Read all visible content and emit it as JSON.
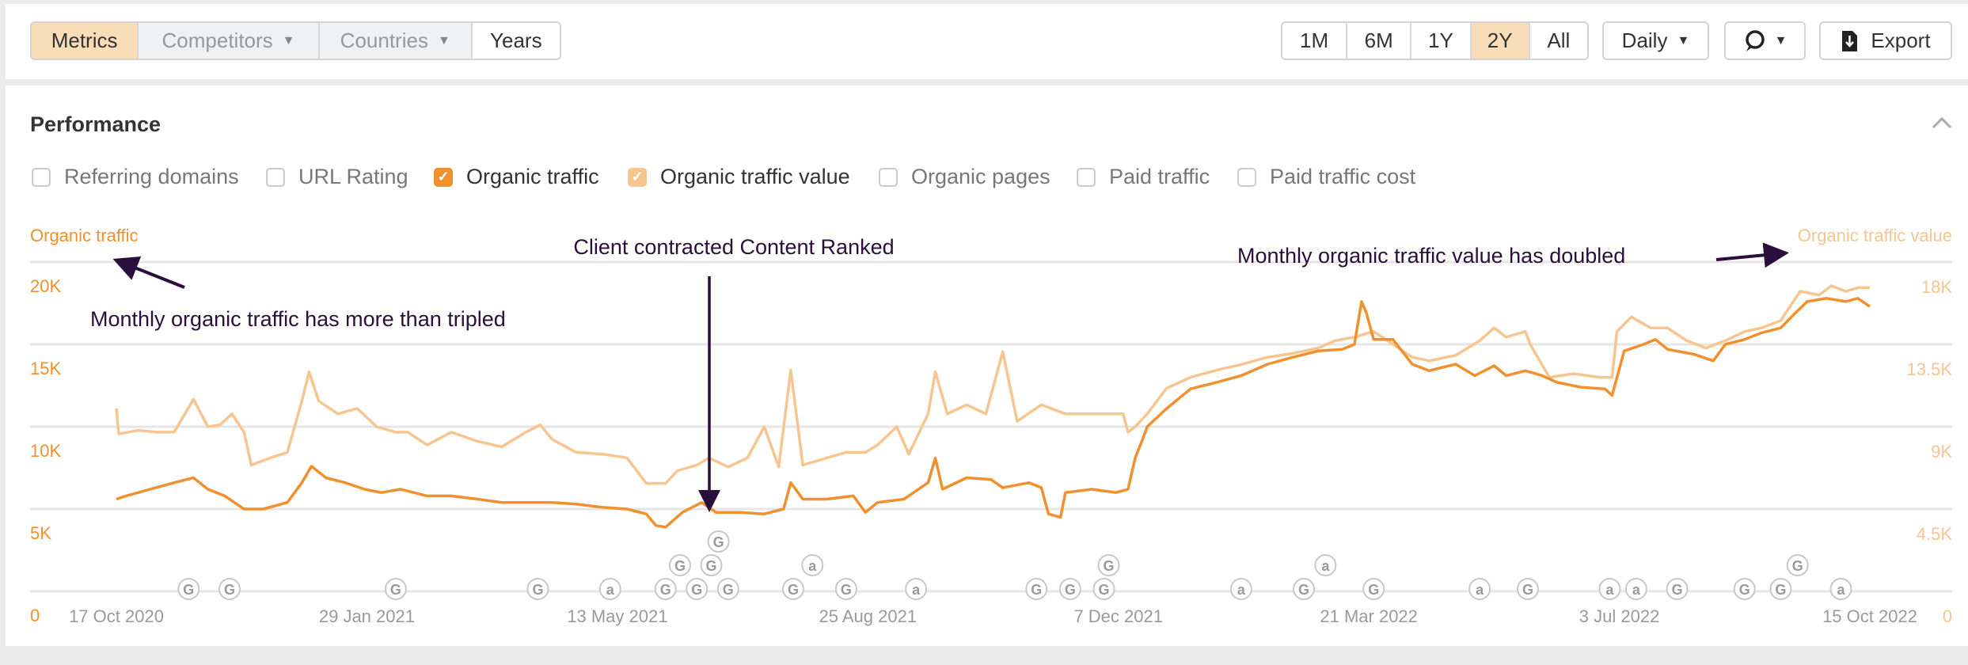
{
  "toolbar": {
    "left_tabs": [
      {
        "label": "Metrics",
        "active": true,
        "dropdown": false,
        "disabled": false
      },
      {
        "label": "Competitors",
        "active": false,
        "dropdown": true,
        "disabled": true
      },
      {
        "label": "Countries",
        "active": false,
        "dropdown": true,
        "disabled": true
      },
      {
        "label": "Years",
        "active": false,
        "dropdown": false,
        "disabled": false
      }
    ],
    "ranges": [
      {
        "label": "1M",
        "active": false
      },
      {
        "label": "6M",
        "active": false
      },
      {
        "label": "1Y",
        "active": false
      },
      {
        "label": "2Y",
        "active": true
      },
      {
        "label": "All",
        "active": false
      }
    ],
    "interval": "Daily",
    "comment_icon": "speech-bubble-icon",
    "export_label": "Export",
    "export_icon": "download-document-icon"
  },
  "section": {
    "title": "Performance",
    "collapse_icon": "chevron-up-icon",
    "metrics": [
      {
        "label": "Referring domains",
        "checked": false
      },
      {
        "label": "URL Rating",
        "checked": false
      },
      {
        "label": "Organic traffic",
        "checked": true,
        "color": "#f0902f"
      },
      {
        "label": "Organic traffic value",
        "checked": true,
        "color": "#f7c58f"
      },
      {
        "label": "Organic pages",
        "checked": false
      },
      {
        "label": "Paid traffic",
        "checked": false
      },
      {
        "label": "Paid traffic cost",
        "checked": false
      }
    ]
  },
  "chart_data": {
    "type": "line",
    "x_unit": "days since 17 Oct 2020",
    "xlim": [
      0,
      728
    ],
    "x_ticks": [
      {
        "day": 0,
        "label": "17 Oct 2020"
      },
      {
        "day": 104,
        "label": "29 Jan 2021"
      },
      {
        "day": 208,
        "label": "13 May 2021"
      },
      {
        "day": 312,
        "label": "25 Aug 2021"
      },
      {
        "day": 416,
        "label": "7 Dec 2021"
      },
      {
        "day": 520,
        "label": "21 Mar 2022"
      },
      {
        "day": 624,
        "label": "3 Jul 2022"
      },
      {
        "day": 728,
        "label": "15 Oct 2022"
      }
    ],
    "left_axis": {
      "label": "Organic traffic",
      "ylim": [
        0,
        20
      ],
      "ticks": [
        {
          "v": 0,
          "label": "0"
        },
        {
          "v": 5,
          "label": "5K"
        },
        {
          "v": 10,
          "label": "10K"
        },
        {
          "v": 15,
          "label": "15K"
        },
        {
          "v": 20,
          "label": "20K"
        }
      ],
      "color": "#f0902f"
    },
    "right_axis": {
      "label": "Organic traffic value",
      "ylim": [
        0,
        18
      ],
      "ticks": [
        {
          "v": 0,
          "label": "0"
        },
        {
          "v": 4.5,
          "label": "4.5K"
        },
        {
          "v": 9,
          "label": "9K"
        },
        {
          "v": 13.5,
          "label": "13.5K"
        },
        {
          "v": 18,
          "label": "18K"
        }
      ],
      "color": "#f7c58f"
    },
    "grid": true,
    "series": [
      {
        "name": "Organic traffic value",
        "axis": "right",
        "unit": "K",
        "color": "#f7c58f",
        "x": [
          0,
          1,
          9,
          17,
          24,
          32,
          38,
          43,
          48,
          53,
          56,
          64,
          71,
          77,
          80,
          84,
          92,
          100,
          108,
          116,
          121,
          129,
          139,
          150,
          160,
          170,
          176,
          181,
          191,
          202,
          212,
          220,
          228,
          233,
          241,
          246,
          254,
          262,
          269,
          275,
          280,
          285,
          295,
          303,
          311,
          316,
          324,
          329,
          337,
          340,
          345,
          353,
          361,
          368,
          374,
          384,
          394,
          405,
          418,
          420,
          423,
          428,
          436,
          446,
          457,
          467,
          478,
          488,
          499,
          506,
          514,
          522,
          530,
          538,
          545,
          556,
          566,
          572,
          577,
          585,
          587,
          595,
          605,
          616,
          621,
          623,
          629,
          637,
          644,
          652,
          660,
          668,
          676,
          683,
          691,
          699,
          707,
          712,
          718,
          723,
          728
        ],
        "values": [
          10.0,
          8.6,
          8.8,
          8.7,
          8.7,
          10.5,
          9.0,
          9.1,
          9.7,
          8.7,
          6.9,
          7.3,
          7.6,
          10.4,
          12.0,
          10.4,
          9.7,
          10.0,
          9.0,
          8.7,
          8.7,
          8.0,
          8.7,
          8.2,
          7.9,
          8.7,
          9.1,
          8.3,
          7.6,
          7.5,
          7.3,
          5.9,
          5.9,
          6.6,
          6.9,
          7.3,
          6.8,
          7.3,
          9.0,
          6.8,
          12.1,
          6.9,
          7.3,
          7.6,
          7.6,
          8.0,
          9.0,
          7.5,
          9.7,
          12.0,
          9.7,
          10.2,
          9.7,
          13.1,
          9.3,
          10.2,
          9.7,
          9.7,
          9.7,
          8.7,
          9.0,
          9.7,
          11.1,
          11.7,
          12.1,
          12.4,
          12.8,
          13.0,
          13.3,
          13.7,
          13.9,
          14.2,
          13.5,
          12.8,
          12.6,
          12.9,
          13.7,
          14.4,
          13.9,
          14.2,
          13.5,
          11.7,
          11.9,
          11.7,
          11.7,
          14.2,
          15.0,
          14.4,
          14.4,
          13.7,
          13.3,
          13.7,
          14.2,
          14.4,
          14.8,
          16.4,
          16.2,
          16.7,
          16.4,
          16.6,
          16.6
        ]
      },
      {
        "name": "Organic traffic",
        "axis": "left",
        "unit": "K",
        "color": "#f0902f",
        "x": [
          0,
          4,
          14,
          24,
          32,
          38,
          45,
          53,
          61,
          71,
          77,
          81,
          87,
          95,
          103,
          110,
          118,
          129,
          139,
          150,
          160,
          170,
          181,
          191,
          202,
          212,
          220,
          224,
          228,
          235,
          243,
          249,
          259,
          269,
          277,
          280,
          285,
          295,
          306,
          311,
          316,
          327,
          337,
          340,
          343,
          353,
          363,
          368,
          379,
          384,
          387,
          392,
          394,
          405,
          415,
          420,
          423,
          426,
          428,
          436,
          446,
          457,
          467,
          478,
          488,
          499,
          509,
          514,
          517,
          519,
          522,
          530,
          538,
          545,
          556,
          564,
          572,
          577,
          585,
          592,
          598,
          608,
          618,
          621,
          626,
          634,
          639,
          644,
          655,
          663,
          668,
          676,
          683,
          691,
          697,
          702,
          710,
          718,
          723,
          728
        ],
        "values": [
          5.6,
          5.8,
          6.2,
          6.6,
          6.9,
          6.2,
          5.8,
          5.0,
          5.0,
          5.4,
          6.6,
          7.6,
          6.9,
          6.6,
          6.2,
          6.0,
          6.2,
          5.8,
          5.8,
          5.6,
          5.4,
          5.4,
          5.4,
          5.3,
          5.1,
          5.0,
          4.7,
          4.0,
          3.9,
          4.8,
          5.4,
          4.8,
          4.8,
          4.7,
          5.0,
          6.6,
          5.6,
          5.6,
          5.8,
          4.8,
          5.4,
          5.6,
          6.6,
          8.1,
          6.2,
          6.9,
          6.8,
          6.3,
          6.6,
          6.3,
          4.7,
          4.5,
          6.0,
          6.2,
          6.0,
          6.2,
          8.1,
          9.2,
          10.0,
          11.1,
          12.3,
          12.7,
          13.1,
          13.8,
          14.2,
          14.6,
          14.7,
          15.0,
          17.6,
          16.9,
          15.3,
          15.3,
          13.8,
          13.4,
          13.8,
          13.1,
          13.7,
          13.1,
          13.4,
          13.1,
          12.7,
          12.4,
          12.3,
          11.9,
          14.6,
          15.0,
          15.3,
          14.7,
          14.4,
          14.0,
          15.0,
          15.3,
          15.7,
          16.0,
          16.9,
          17.6,
          17.8,
          17.6,
          17.8,
          17.3
        ]
      }
    ],
    "event_markers": [
      {
        "day": 30,
        "type": "G"
      },
      {
        "day": 47,
        "type": "G"
      },
      {
        "day": 116,
        "type": "G"
      },
      {
        "day": 175,
        "type": "G"
      },
      {
        "day": 205,
        "type": "a"
      },
      {
        "day": 228,
        "type": "G"
      },
      {
        "day": 234,
        "type": "G"
      },
      {
        "day": 241,
        "type": "G"
      },
      {
        "day": 247,
        "type": "G"
      },
      {
        "day": 250,
        "type": "G"
      },
      {
        "day": 254,
        "type": "G"
      },
      {
        "day": 281,
        "type": "G"
      },
      {
        "day": 289,
        "type": "a"
      },
      {
        "day": 303,
        "type": "G"
      },
      {
        "day": 332,
        "type": "a"
      },
      {
        "day": 382,
        "type": "G"
      },
      {
        "day": 396,
        "type": "G"
      },
      {
        "day": 410,
        "type": "G"
      },
      {
        "day": 412,
        "type": "G"
      },
      {
        "day": 467,
        "type": "a"
      },
      {
        "day": 493,
        "type": "G"
      },
      {
        "day": 502,
        "type": "a"
      },
      {
        "day": 522,
        "type": "G"
      },
      {
        "day": 566,
        "type": "a"
      },
      {
        "day": 586,
        "type": "G"
      },
      {
        "day": 620,
        "type": "a"
      },
      {
        "day": 631,
        "type": "a"
      },
      {
        "day": 648,
        "type": "G"
      },
      {
        "day": 676,
        "type": "G"
      },
      {
        "day": 691,
        "type": "G"
      },
      {
        "day": 698,
        "type": "G"
      },
      {
        "day": 716,
        "type": "a"
      }
    ],
    "annotations": {
      "contract": "Client contracted Content Ranked",
      "traffic": "Monthly organic traffic has more than tripled",
      "value": "Monthly organic traffic value has doubled",
      "color": "#2a0f3d"
    }
  }
}
